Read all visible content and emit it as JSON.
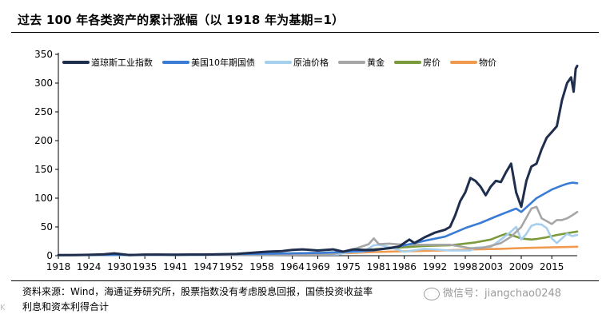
{
  "title": "过去 100 年各类资产的累计涨幅（以 1918 年为基期=1）",
  "footer": {
    "line1": "资料来源：Wind，海通证券研究所，股票指数没有考虑股息回报，国债投资收益率",
    "line2": "利息和资本利得合计"
  },
  "watermark": "微信号：jiangchao0248",
  "corner_mark": "K",
  "chart_data": {
    "type": "line",
    "title": "过去 100 年各类资产的累计涨幅（以 1918 年为基期=1）",
    "xlabel": "",
    "ylabel": "",
    "xlim": [
      1918,
      2020
    ],
    "ylim": [
      0,
      350
    ],
    "yticks": [
      0,
      50,
      100,
      150,
      200,
      250,
      300,
      350
    ],
    "xticks": [
      1918,
      1924,
      1930,
      1935,
      1941,
      1947,
      1952,
      1958,
      1964,
      1969,
      1975,
      1981,
      1986,
      1992,
      1998,
      2003,
      2009,
      2015
    ],
    "grid": false,
    "legend_position": "top",
    "series": [
      {
        "name": "道琼斯工业指数",
        "color": "#1f2e4d",
        "x": [
          1918,
          1921,
          1924,
          1927,
          1929,
          1932,
          1935,
          1938,
          1941,
          1944,
          1947,
          1950,
          1953,
          1956,
          1959,
          1962,
          1964,
          1966,
          1969,
          1972,
          1974,
          1976,
          1978,
          1980,
          1982,
          1983,
          1985,
          1987,
          1988,
          1990,
          1992,
          1994,
          1995,
          1996,
          1997,
          1998,
          1999,
          2000,
          2001,
          2002,
          2003,
          2004,
          2005,
          2006,
          2007,
          2008,
          2009,
          2010,
          2011,
          2012,
          2013,
          2014,
          2015,
          2016,
          2017,
          2018,
          2018.8,
          2019.3,
          2019.7,
          2020
        ],
        "y": [
          1,
          1,
          1.5,
          2.4,
          4,
          1,
          2,
          2,
          1.5,
          2,
          2,
          2.5,
          3,
          5,
          7,
          8,
          10,
          11,
          9,
          11,
          7,
          11,
          10,
          10,
          12,
          13,
          16,
          28,
          22,
          32,
          40,
          45,
          50,
          70,
          95,
          110,
          135,
          130,
          120,
          105,
          120,
          130,
          128,
          145,
          160,
          110,
          85,
          130,
          155,
          160,
          185,
          205,
          215,
          225,
          270,
          300,
          310,
          285,
          325,
          330
        ]
      },
      {
        "name": "美国10年期国债",
        "color": "#3a7bd5",
        "x": [
          1918,
          1930,
          1940,
          1950,
          1960,
          1970,
          1975,
          1980,
          1985,
          1990,
          1994,
          1998,
          2001,
          2004,
          2008,
          2009,
          2012,
          2015,
          2017,
          2018,
          2019,
          2020
        ],
        "y": [
          1,
          1.5,
          2,
          2.5,
          3.5,
          5,
          7,
          9,
          16,
          26,
          33,
          48,
          57,
          68,
          82,
          76,
          100,
          115,
          122,
          125,
          127,
          126
        ]
      },
      {
        "name": "原油价格",
        "color": "#a6cfee",
        "x": [
          1918,
          1940,
          1960,
          1973,
          1975,
          1978,
          1980,
          1981,
          1983,
          1986,
          1990,
          1995,
          1999,
          2000,
          2003,
          2005,
          2007,
          2008,
          2009,
          2010,
          2011,
          2012,
          2013,
          2014,
          2015,
          2016,
          2017,
          2018,
          2019,
          2020
        ],
        "y": [
          1,
          1,
          1.5,
          2,
          6,
          7,
          18,
          19,
          15,
          7,
          12,
          9,
          9,
          14,
          15,
          28,
          42,
          50,
          28,
          38,
          52,
          55,
          54,
          48,
          30,
          22,
          30,
          38,
          34,
          36
        ]
      },
      {
        "name": "黄金",
        "color": "#a6a6a6",
        "x": [
          1918,
          1934,
          1950,
          1970,
          1972,
          1975,
          1979,
          1980,
          1981,
          1983,
          1986,
          1990,
          1995,
          1999,
          2001,
          2003,
          2005,
          2007,
          2009,
          2011,
          2012,
          2013,
          2014,
          2015,
          2016,
          2017,
          2018,
          2019,
          2020
        ],
        "y": [
          1,
          1.7,
          1.7,
          1.8,
          3,
          8,
          20,
          30,
          20,
          21,
          19,
          19,
          19,
          13,
          13,
          17,
          22,
          33,
          50,
          82,
          85,
          65,
          60,
          55,
          62,
          62,
          65,
          70,
          76
        ]
      },
      {
        "name": "房价",
        "color": "#7a9a3c",
        "x": [
          1918,
          1930,
          1940,
          1950,
          1960,
          1970,
          1975,
          1980,
          1985,
          1990,
          1995,
          2000,
          2003,
          2005,
          2006,
          2007,
          2009,
          2011,
          2012,
          2014,
          2016,
          2018,
          2020
        ],
        "y": [
          1,
          1.2,
          1.5,
          2.5,
          3.5,
          5,
          7,
          11,
          14,
          17,
          18,
          23,
          28,
          35,
          38,
          36,
          30,
          28,
          29,
          32,
          36,
          39,
          42
        ]
      },
      {
        "name": "物价",
        "color": "#f09a4f",
        "x": [
          1918,
          1925,
          1930,
          1940,
          1950,
          1960,
          1970,
          1975,
          1980,
          1985,
          1990,
          1995,
          2000,
          2005,
          2010,
          2015,
          2020
        ],
        "y": [
          1,
          1.2,
          1.2,
          1.3,
          1.8,
          2.2,
          3,
          4.5,
          6.2,
          7.5,
          8.5,
          9.5,
          11,
          12,
          13.5,
          14.5,
          15.5
        ]
      }
    ]
  }
}
